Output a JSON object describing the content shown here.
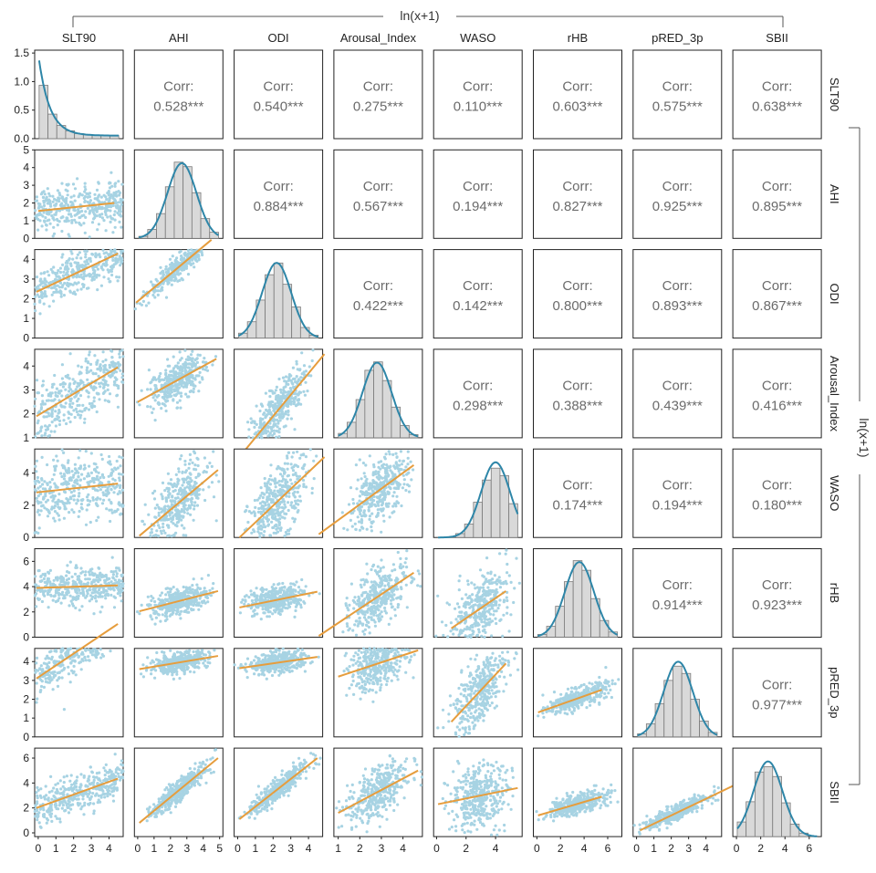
{
  "chart_data": {
    "type": "scatter",
    "top_label": "ln(x+1)",
    "right_label": "ln(x+1)",
    "variables": [
      "SLT90",
      "AHI",
      "ODI",
      "Arousal_Index",
      "WASO",
      "rHB",
      "pRED_3p",
      "SBII"
    ],
    "corr_label": "Corr:",
    "significance": "***",
    "correlations": [
      [
        null,
        0.528,
        0.54,
        0.275,
        0.11,
        0.603,
        0.575,
        0.638
      ],
      [
        0.528,
        null,
        0.884,
        0.567,
        0.194,
        0.827,
        0.925,
        0.895
      ],
      [
        0.54,
        0.884,
        null,
        0.422,
        0.142,
        0.8,
        0.893,
        0.867
      ],
      [
        0.275,
        0.567,
        0.422,
        null,
        0.298,
        0.388,
        0.439,
        0.416
      ],
      [
        0.11,
        0.194,
        0.142,
        0.298,
        null,
        0.174,
        0.194,
        0.18
      ],
      [
        0.603,
        0.827,
        0.8,
        0.388,
        0.174,
        null,
        0.914,
        0.923
      ],
      [
        0.575,
        0.925,
        0.893,
        0.439,
        0.194,
        0.914,
        null,
        0.977
      ],
      [
        0.638,
        0.895,
        0.867,
        0.416,
        0.18,
        0.923,
        0.977,
        null
      ]
    ],
    "y_axes": [
      {
        "range": [
          0,
          1.55
        ],
        "ticks": [
          "0.0",
          "0.5",
          "1.0",
          "1.5"
        ],
        "tick_values": [
          0,
          0.5,
          1.0,
          1.5
        ]
      },
      {
        "range": [
          0,
          5
        ],
        "ticks": [
          "0",
          "1",
          "2",
          "3",
          "4",
          "5"
        ],
        "tick_values": [
          0,
          1,
          2,
          3,
          4,
          5
        ]
      },
      {
        "range": [
          0,
          4.5
        ],
        "ticks": [
          "0",
          "1",
          "2",
          "3",
          "4"
        ],
        "tick_values": [
          0,
          1,
          2,
          3,
          4
        ]
      },
      {
        "range": [
          1,
          4.7
        ],
        "ticks": [
          "1",
          "2",
          "3",
          "4"
        ],
        "tick_values": [
          1,
          2,
          3,
          4
        ]
      },
      {
        "range": [
          0,
          5.5
        ],
        "ticks": [
          "0",
          "2",
          "4"
        ],
        "tick_values": [
          0,
          2,
          4
        ]
      },
      {
        "range": [
          0,
          7
        ],
        "ticks": [
          "0",
          "2",
          "4",
          "6"
        ],
        "tick_values": [
          0,
          2,
          4,
          6
        ]
      },
      {
        "range": [
          0,
          4.7
        ],
        "ticks": [
          "0",
          "1",
          "2",
          "3",
          "4"
        ],
        "tick_values": [
          0,
          1,
          2,
          3,
          4
        ]
      },
      {
        "range": [
          -0.3,
          6.8
        ],
        "ticks": [
          "0",
          "2",
          "4",
          "6"
        ],
        "tick_values": [
          0,
          2,
          4,
          6
        ]
      }
    ],
    "x_axes": [
      {
        "range": [
          -0.2,
          4.8
        ],
        "ticks": [
          "0",
          "1",
          "2",
          "3",
          "4"
        ],
        "tick_values": [
          0,
          1,
          2,
          3,
          4
        ]
      },
      {
        "range": [
          -0.2,
          5.2
        ],
        "ticks": [
          "0",
          "1",
          "2",
          "3",
          "4",
          "5"
        ],
        "tick_values": [
          0,
          1,
          2,
          3,
          4,
          5
        ]
      },
      {
        "range": [
          -0.2,
          4.8
        ],
        "ticks": [
          "0",
          "1",
          "2",
          "3",
          "4"
        ],
        "tick_values": [
          0,
          1,
          2,
          3,
          4
        ]
      },
      {
        "range": [
          0.8,
          4.9
        ],
        "ticks": [
          "1",
          "2",
          "3",
          "4"
        ],
        "tick_values": [
          1,
          2,
          3,
          4
        ]
      },
      {
        "range": [
          -0.2,
          5.8
        ],
        "ticks": [
          "0",
          "2",
          "4"
        ],
        "tick_values": [
          0,
          2,
          4
        ]
      },
      {
        "range": [
          -0.3,
          7.2
        ],
        "ticks": [
          "0",
          "2",
          "4",
          "6"
        ],
        "tick_values": [
          0,
          2,
          4,
          6
        ]
      },
      {
        "range": [
          -0.2,
          4.9
        ],
        "ticks": [
          "0",
          "1",
          "2",
          "3",
          "4"
        ],
        "tick_values": [
          0,
          1,
          2,
          3,
          4
        ]
      },
      {
        "range": [
          -0.3,
          7.0
        ],
        "ticks": [
          "0",
          "2",
          "4",
          "6"
        ],
        "tick_values": [
          0,
          2,
          4,
          6
        ]
      }
    ],
    "regression_lines": [
      [
        [
          0,
          1.55
        ],
        [
          4.3,
          2.0
        ]
      ],
      [
        [
          -0.1,
          2.35
        ],
        [
          4.5,
          4.3
        ]
      ],
      [
        [
          -0.1,
          1.9
        ],
        [
          4.5,
          3.95
        ]
      ],
      [
        [
          -0.1,
          2.8
        ],
        [
          4.5,
          3.35
        ]
      ],
      [
        [
          -0.1,
          3.9
        ],
        [
          4.5,
          4.1
        ]
      ],
      [
        [
          -0.1,
          3.1
        ],
        [
          4.5,
          6.0
        ]
      ],
      [
        [
          -0.1,
          2.0
        ],
        [
          4.5,
          4.35
        ]
      ],
      [
        [
          -0.1,
          1.8
        ],
        [
          4.5,
          5.0
        ]
      ],
      [
        [
          0,
          2.5
        ],
        [
          4.8,
          4.3
        ]
      ],
      [
        [
          0.1,
          0.1
        ],
        [
          4.9,
          4.2
        ]
      ],
      [
        [
          0.1,
          2.05
        ],
        [
          4.9,
          3.65
        ]
      ],
      [
        [
          0.1,
          3.6
        ],
        [
          4.9,
          4.3
        ]
      ],
      [
        [
          0.1,
          0.8
        ],
        [
          4.9,
          6.0
        ]
      ],
      [
        [
          0.1,
          0.2
        ],
        [
          4.9,
          4.5
        ]
      ],
      [
        [
          0.1,
          0.0
        ],
        [
          4.9,
          5.0
        ]
      ],
      [
        [
          0.1,
          2.35
        ],
        [
          4.5,
          3.6
        ]
      ],
      [
        [
          0.1,
          3.65
        ],
        [
          4.5,
          4.25
        ]
      ],
      [
        [
          0.1,
          1.1
        ],
        [
          4.5,
          6.0
        ]
      ],
      [
        [
          0.1,
          0.2
        ],
        [
          4.5,
          4.5
        ]
      ],
      [
        [
          0.1,
          0.1
        ],
        [
          4.5,
          5.1
        ]
      ],
      [
        [
          1.0,
          3.2
        ],
        [
          4.7,
          4.6
        ]
      ],
      [
        [
          1.0,
          1.6
        ],
        [
          4.7,
          5.0
        ]
      ],
      [
        [
          1.0,
          0.7
        ],
        [
          4.7,
          3.65
        ]
      ],
      [
        [
          1.0,
          0.8
        ],
        [
          4.7,
          3.9
        ]
      ],
      [
        [
          0.1,
          2.3
        ],
        [
          5.5,
          3.6
        ]
      ],
      [
        [
          0.1,
          1.3
        ],
        [
          5.5,
          2.5
        ]
      ],
      [
        [
          0.1,
          1.4
        ],
        [
          5.5,
          2.9
        ]
      ],
      [
        [
          0.2,
          0.2
        ],
        [
          6.8,
          4.6
        ]
      ],
      [
        [
          0.2,
          0.1
        ],
        [
          6.8,
          6.0
        ]
      ],
      [
        [
          0.0,
          0.4
        ],
        [
          4.5,
          5.3
        ]
      ]
    ],
    "density_peaks": [
      0.15,
      2.7,
      2.2,
      2.8,
      4.0,
      3.6,
      2.4,
      2.6
    ],
    "scatter_color": "#a7d3e3",
    "line_color": "#e69d3d",
    "density_color": "#2e86a8",
    "hist_fill": "#d9d9d9",
    "hist_stroke": "#7a7a7a"
  }
}
